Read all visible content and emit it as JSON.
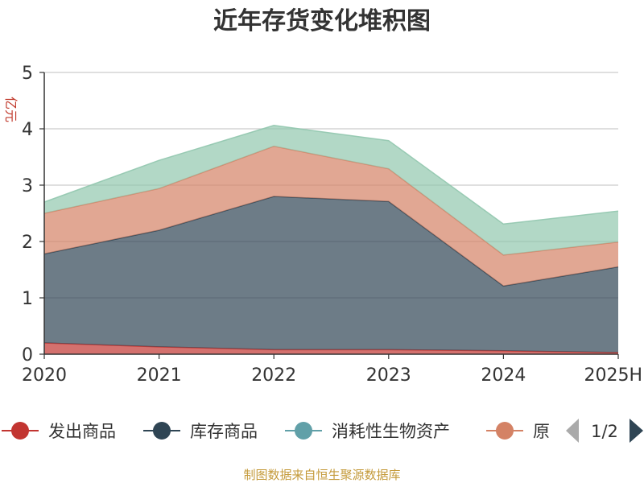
{
  "chart_data": {
    "type": "area",
    "stacked": true,
    "title": "近年存货变化堆积图",
    "ylabel": "亿元",
    "x": [
      "2020",
      "2021",
      "2022",
      "2023",
      "2024",
      "2025H"
    ],
    "ylim": [
      0,
      5
    ],
    "yticks": [
      "0",
      "1",
      "2",
      "3",
      "4",
      "5"
    ],
    "grid": true,
    "legend_position": "bottom",
    "series": [
      {
        "name": "发出商品",
        "color": "#c23531",
        "values": [
          0.2,
          0.13,
          0.08,
          0.08,
          0.06,
          0.03
        ]
      },
      {
        "name": "库存商品",
        "color": "#2f4554",
        "values": [
          1.58,
          2.07,
          2.72,
          2.63,
          1.15,
          1.52
        ]
      },
      {
        "name": "原材料",
        "color": "#d48265",
        "values": [
          0.72,
          0.74,
          0.89,
          0.58,
          0.55,
          0.44
        ]
      },
      {
        "name": "消耗性生物资产",
        "color": "#61a0a8",
        "area_color": "#91c7ae",
        "values": [
          0.2,
          0.5,
          0.37,
          0.5,
          0.55,
          0.55
        ]
      }
    ],
    "legend": {
      "items": [
        {
          "label": "发出商品",
          "color": "#c23531"
        },
        {
          "label": "库存商品",
          "color": "#2f4554"
        },
        {
          "label": "消耗性生物资产",
          "color": "#61a0a8"
        },
        {
          "label": "原",
          "color": "#d48265"
        }
      ],
      "page": "1/2"
    }
  },
  "source_text": "制图数据来自恒生聚源数据库"
}
